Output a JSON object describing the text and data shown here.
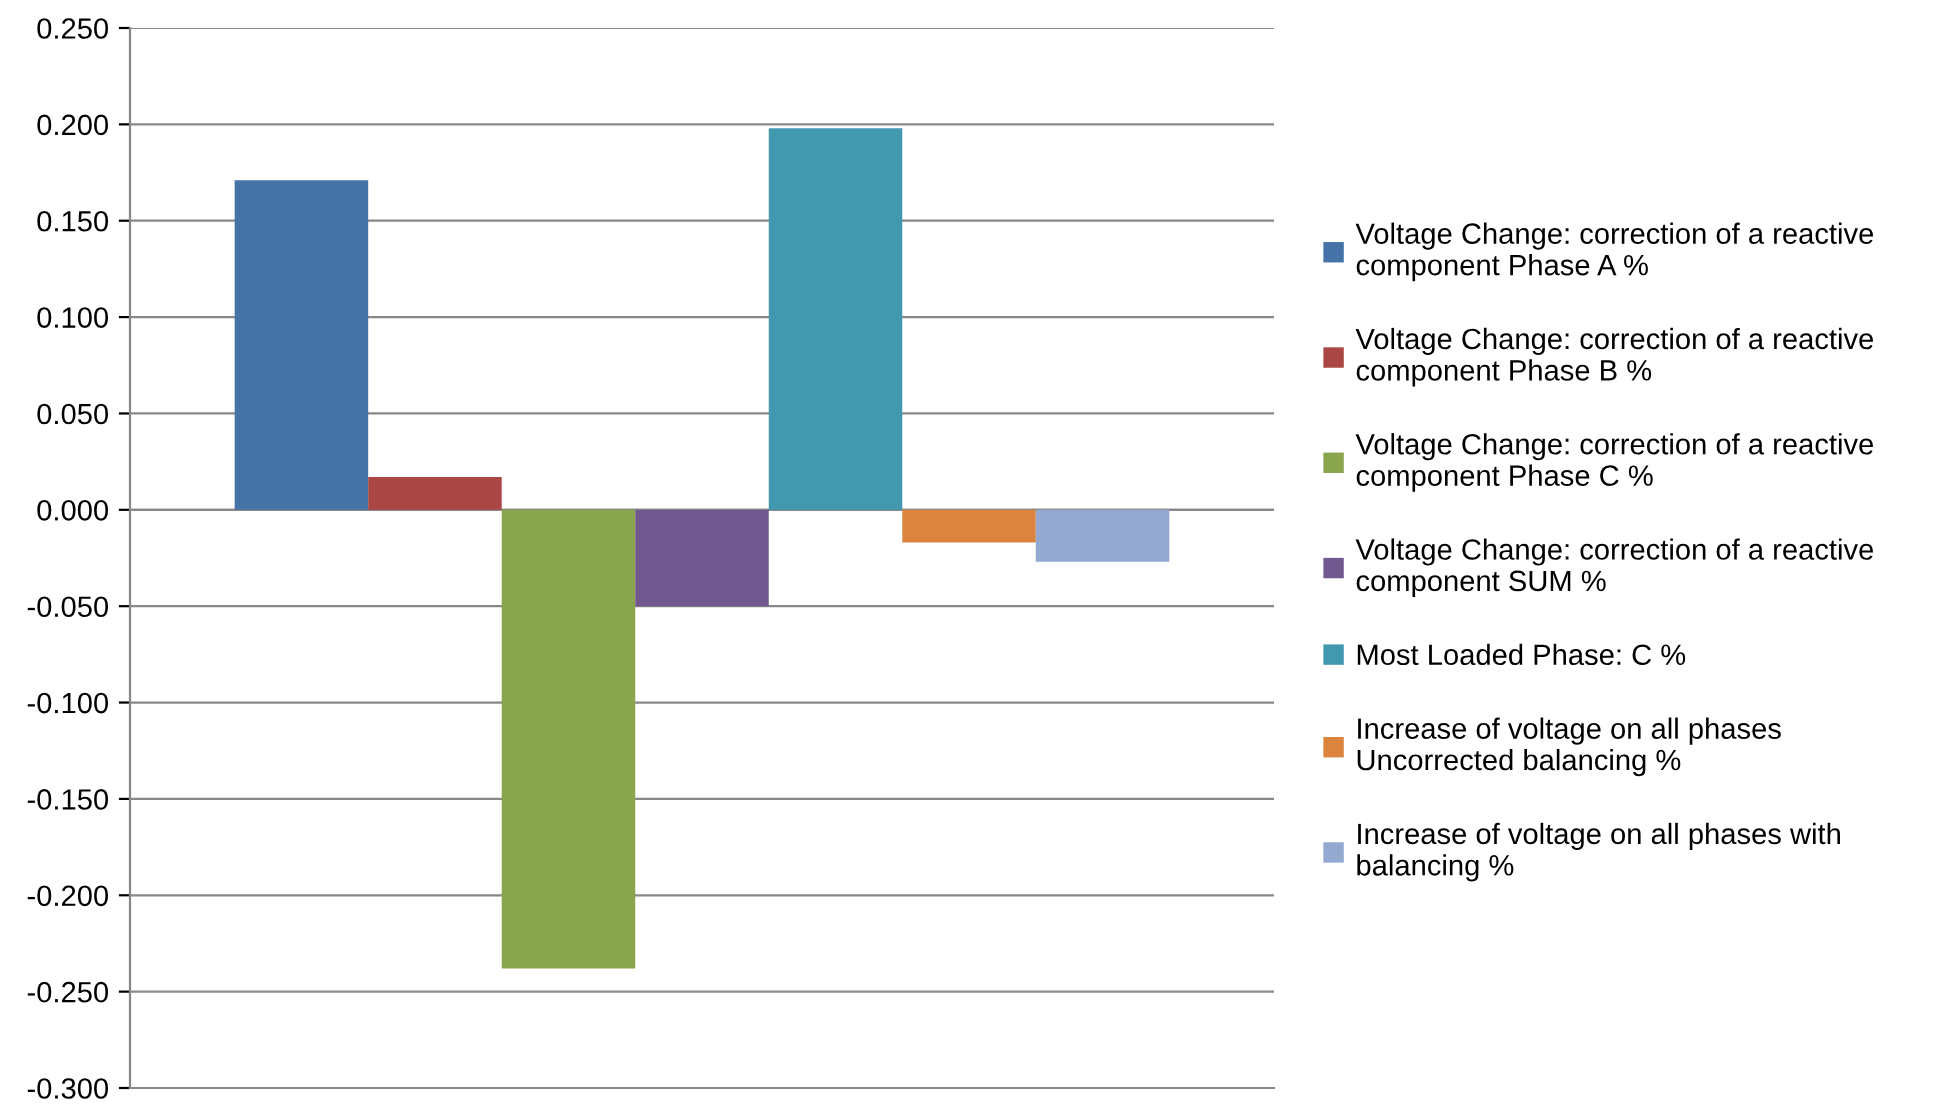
{
  "chart_data": {
    "type": "bar",
    "categories": [
      null
    ],
    "series": [
      {
        "name": "Voltage Change: correction of a reactive\ncomponent Phase A %",
        "color": "#4572a7",
        "values": [
          0.171
        ]
      },
      {
        "name": "Voltage Change: correction of a reactive\ncomponent Phase B %",
        "color": "#aa4643",
        "values": [
          0.017
        ]
      },
      {
        "name": "Voltage Change: correction of a reactive\ncomponent Phase C %",
        "color": "#89a54e",
        "values": [
          -0.238
        ]
      },
      {
        "name": "Voltage Change: correction of a reactive\ncomponent SUM %",
        "color": "#71588f",
        "values": [
          -0.05
        ]
      },
      {
        "name": "Most Loaded Phase: C %",
        "color": "#4198af",
        "values": [
          0.198
        ]
      },
      {
        "name": "Increase of voltage on all phases\nUncorrected balancing %",
        "color": "#db843d",
        "values": [
          -0.017
        ]
      },
      {
        "name": "Increase of voltage on all phases with\nbalancing %",
        "color": "#93a9cf",
        "values": [
          -0.027
        ]
      }
    ],
    "ylim": [
      -0.3,
      0.25
    ],
    "yticks": [
      {
        "value": -0.3,
        "label": "-0.300"
      },
      {
        "value": -0.25,
        "label": "-0.250"
      },
      {
        "value": -0.2,
        "label": "-0.200"
      },
      {
        "value": -0.15,
        "label": "-0.150"
      },
      {
        "value": -0.1,
        "label": "-0.100"
      },
      {
        "value": -0.05,
        "label": "-0.050"
      },
      {
        "value": 0,
        "label": "0.000"
      },
      {
        "value": 0.05,
        "label": "0.050"
      },
      {
        "value": 0.1,
        "label": "0.100"
      },
      {
        "value": 0.15,
        "label": "0.150"
      },
      {
        "value": 0.2,
        "label": "0.200"
      },
      {
        "value": 0.25,
        "label": "0.250"
      }
    ],
    "grid": "y",
    "legend": "right"
  }
}
